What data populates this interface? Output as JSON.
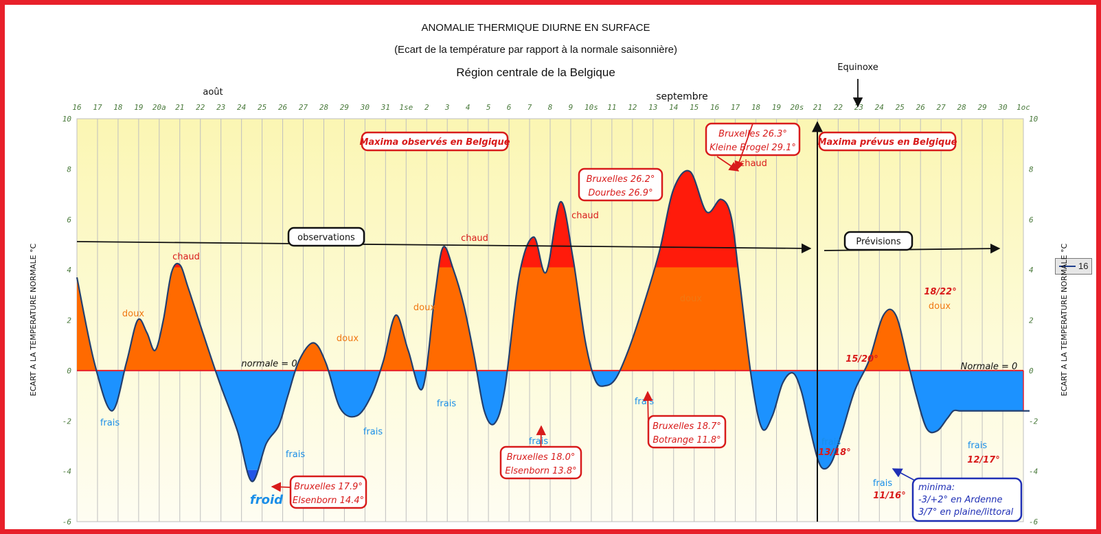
{
  "title": "ANOMALIE THERMIQUE DIURNE EN SURFACE",
  "subtitle": "(Ecart de la température par rapport à la normale saisonnière)",
  "region": "Région centrale de la Belgique",
  "month_labels": {
    "august": "août",
    "september": "septembre"
  },
  "equinox_label": "Equinoxe",
  "legend_label": "16",
  "colors": {
    "warm_fill": "#ff6a00",
    "hot_fill": "#ff1b0b",
    "cool_fill": "#1c92ff",
    "cold_fill": "#2255e8",
    "line": "#233f6e",
    "text_red": "#d81b1b",
    "text_orange": "#f07812",
    "text_blue": "#1a8ee8",
    "text_navy": "#1f2fb5"
  },
  "chart_data": {
    "type": "area",
    "ylabel": "ECART A LA TEMPERATURE NORMALE °C",
    "ylim": [
      -6,
      10
    ],
    "yticks": [
      -6,
      -4,
      -2,
      0,
      2,
      4,
      6,
      8,
      10
    ],
    "xtick_labels": [
      "16",
      "17",
      "18",
      "19",
      "20a",
      "21",
      "22",
      "23",
      "24",
      "25",
      "26",
      "27",
      "28",
      "29",
      "30",
      "31",
      "1se",
      "2",
      "3",
      "4",
      "5",
      "6",
      "7",
      "8",
      "9",
      "10s",
      "11",
      "12",
      "13",
      "14",
      "15",
      "16",
      "17",
      "18",
      "19",
      "20s",
      "21",
      "22",
      "23",
      "24",
      "25",
      "26",
      "27",
      "28",
      "29",
      "30",
      "1oc"
    ],
    "x_start": "16 août",
    "hot_threshold": 4.1,
    "series": [
      {
        "x": [
          0,
          0.85,
          1.7,
          2.4,
          2.95,
          3.4,
          3.8,
          4.2,
          4.6,
          5.0,
          5.4,
          6.0,
          6.9,
          7.8,
          8.5,
          9.2,
          9.8,
          10.25,
          10.8,
          11.5,
          12.1,
          12.8,
          13.6,
          14.3,
          14.9,
          15.5,
          16.1,
          16.8,
          17.4,
          17.8,
          18.3,
          18.8,
          19.3,
          19.8,
          20.3,
          20.8,
          21.5,
          22.2,
          22.8,
          23.5,
          24.1,
          24.7,
          25.2,
          25.7,
          26.2,
          26.8,
          27.5,
          28.3,
          29.0,
          29.8,
          30.6,
          31.3,
          31.8,
          32.2,
          32.8,
          33.3,
          33.8,
          34.3,
          34.8,
          35.2,
          35.6,
          36.0,
          36.3,
          36.7,
          37.2,
          37.8,
          38.5,
          39.2,
          39.8,
          40.4,
          40.8,
          41.3,
          41.8,
          42.3,
          42.6,
          42.9,
          43.2,
          43.6,
          44.1,
          44.6,
          45.0,
          45.6,
          46.3
        ],
        "y": [
          3.7,
          0.3,
          -1.6,
          0.3,
          2.0,
          1.5,
          0.8,
          2.0,
          3.9,
          4.2,
          3.3,
          1.8,
          -0.4,
          -2.4,
          -4.4,
          -2.9,
          -2.2,
          -1.0,
          0.4,
          1.1,
          0.3,
          -1.5,
          -1.8,
          -1.0,
          0.4,
          2.2,
          0.8,
          -0.7,
          3.0,
          4.9,
          4.0,
          2.6,
          0.6,
          -1.6,
          -2.1,
          -0.7,
          3.8,
          5.3,
          3.9,
          6.7,
          4.5,
          1.2,
          -0.4,
          -0.6,
          -0.3,
          0.8,
          2.5,
          4.7,
          7.2,
          7.9,
          6.3,
          6.8,
          6.1,
          3.6,
          -0.4,
          -2.3,
          -1.8,
          -0.5,
          -0.1,
          -0.8,
          -2.2,
          -3.5,
          -3.9,
          -3.6,
          -2.4,
          -0.8,
          0.4,
          2.2,
          2.2,
          0.3,
          -1.0,
          -2.3,
          -2.4,
          -1.9,
          -1.6,
          -1.6,
          -1.6,
          -1.6,
          -1.6,
          -1.6,
          -1.6,
          -1.6,
          -1.6
        ]
      }
    ],
    "annotations": [
      {
        "text": "Maxima observés en Belgique"
      },
      {
        "text": "Maxima prévus en Belgique"
      },
      {
        "text": "observations"
      },
      {
        "text": "Prévisions"
      },
      {
        "text": "normale = 0"
      },
      {
        "text": "Normale = 0"
      },
      {
        "text": "chaud"
      },
      {
        "text": "doux"
      },
      {
        "text": "frais"
      },
      {
        "text": "froid"
      },
      {
        "text": "Bruxelles 17.9°"
      },
      {
        "text": "Elsenborn 14.4°"
      },
      {
        "text": "Bruxelles 18.0°"
      },
      {
        "text": "Elsenborn 13.8°"
      },
      {
        "text": "Bruxelles 26.2°"
      },
      {
        "text": "Dourbes 26.9°"
      },
      {
        "text": "Bruxelles 18.7°"
      },
      {
        "text": "Botrange 11.8°"
      },
      {
        "text": "Bruxelles 26.3°"
      },
      {
        "text": "Kleine Brogel 29.1°"
      },
      {
        "text": "minima:"
      },
      {
        "text": "-3/+2° en Ardenne"
      },
      {
        "text": "3/7° en plaine/littoral"
      },
      {
        "text": "15/20°"
      },
      {
        "text": "13/18°"
      },
      {
        "text": "11/16°"
      },
      {
        "text": "18/22°"
      },
      {
        "text": "12/17°"
      }
    ]
  }
}
